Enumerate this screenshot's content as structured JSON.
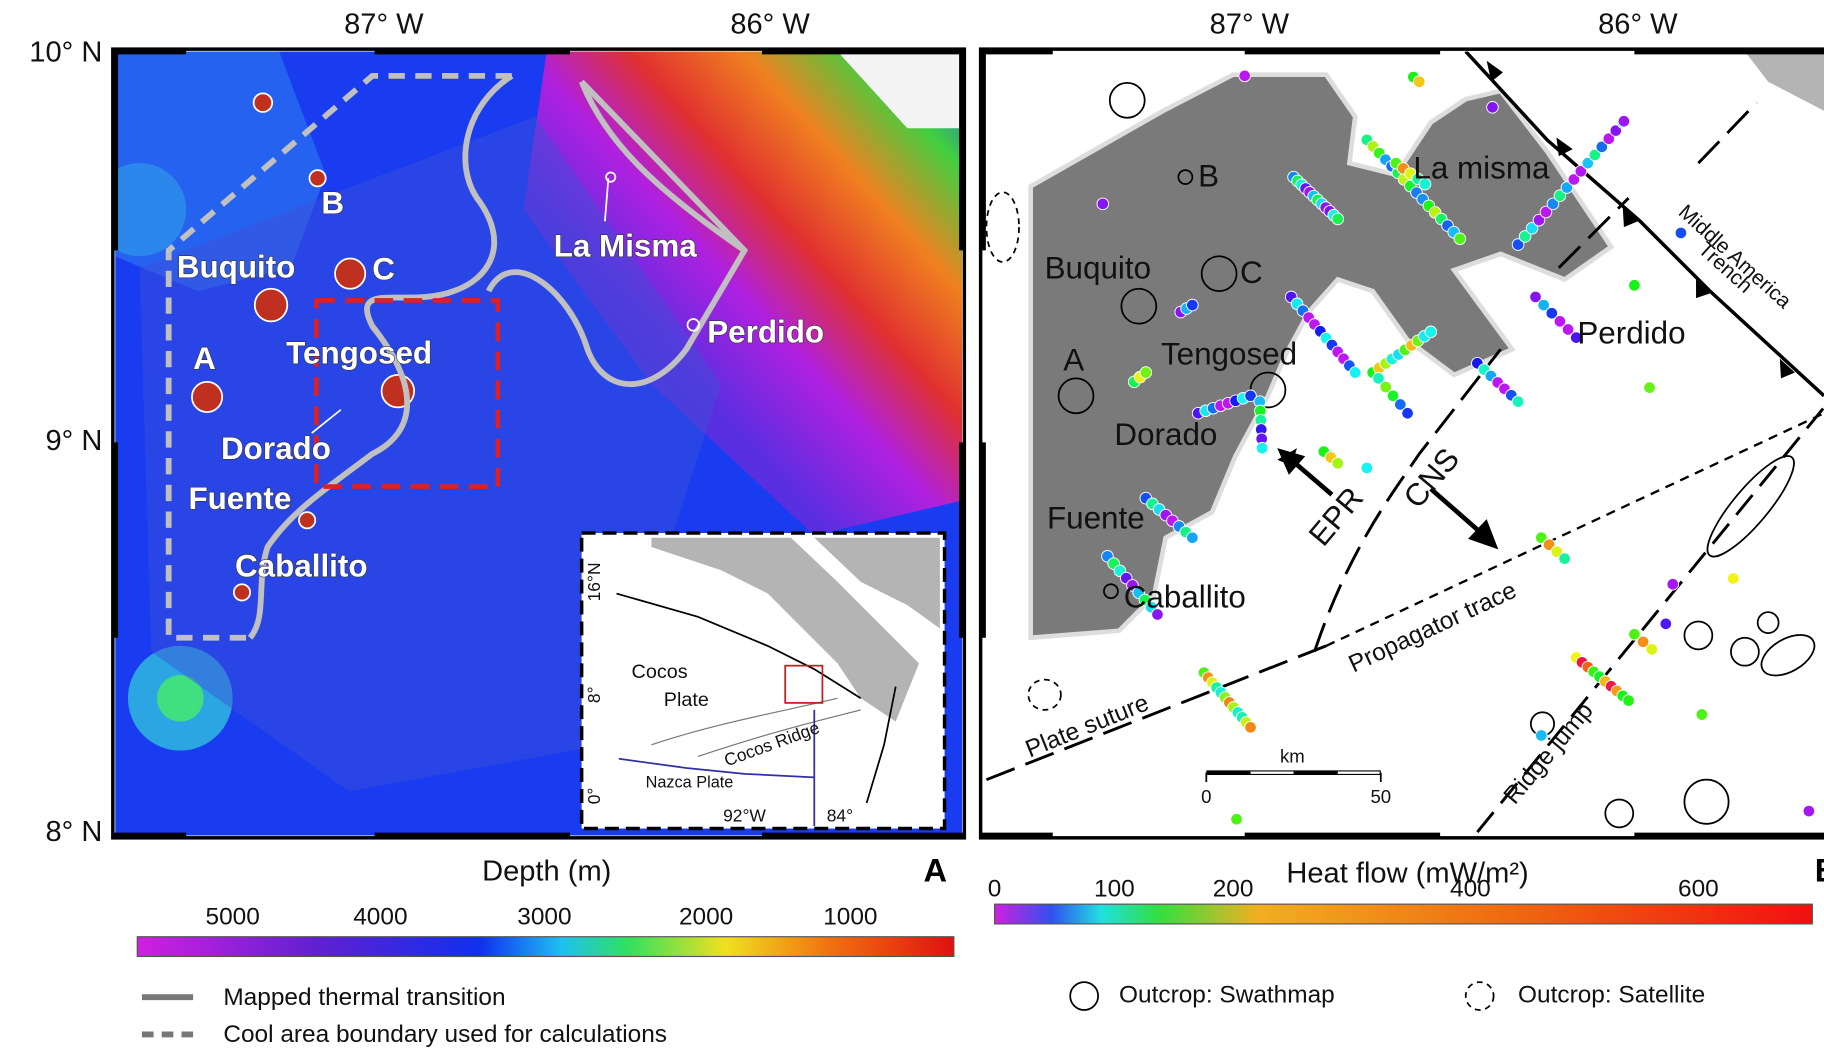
{
  "panel_a": {
    "letter": "A",
    "lon_labels": [
      "87° W",
      "86° W"
    ],
    "lat_labels": [
      "10° N",
      "9° N",
      "8° N"
    ],
    "sites": {
      "b": "B",
      "buquito": "Buquito",
      "c": "C",
      "a": "A",
      "tengosed": "Tengosed",
      "dorado": "Dorado",
      "fuente": "Fuente",
      "caballito": "Caballito",
      "la_misma": "La Misma",
      "perdido": "Perdido"
    },
    "inset": {
      "cocos_plate": [
        "Cocos",
        "Plate"
      ],
      "cocos_ridge": "Cocos Ridge",
      "nazca_plate": "Nazca Plate",
      "lat_labels": [
        "16°N",
        "8°",
        "0°"
      ],
      "lon_labels": [
        "92°W",
        "84°"
      ]
    },
    "colorbar": {
      "title": "Depth (m)",
      "ticks": [
        "5000",
        "4000",
        "3000",
        "2000",
        "1000"
      ]
    },
    "legend": [
      "Mapped thermal transition",
      "Cool area boundary used for calculations"
    ]
  },
  "panel_b": {
    "letter": "B",
    "lon_labels": [
      "87° W",
      "86° W"
    ],
    "sites": {
      "b": "B",
      "buquito": "Buquito",
      "c": "C",
      "a": "A",
      "tengosed": "Tengosed",
      "dorado": "Dorado",
      "fuente": "Fuente",
      "caballito": "Caballito",
      "la_misma": "La misma",
      "perdido": "Perdido"
    },
    "features": {
      "trench": [
        "Middle America",
        "Trench"
      ],
      "epr": "EPR",
      "cns": "CNS",
      "propagator": "Propagator trace",
      "suture": "Plate suture",
      "ridge_jump": "Ridge jump"
    },
    "scale_bar": {
      "unit": "km",
      "ticks": [
        "0",
        "50"
      ]
    },
    "colorbar": {
      "title": "Heat flow (mW/m²)",
      "ticks": [
        "0",
        "100",
        "200",
        "400",
        "600"
      ]
    },
    "legend": [
      "Outcrop: Swathmap",
      "Outcrop: Satellite"
    ]
  }
}
